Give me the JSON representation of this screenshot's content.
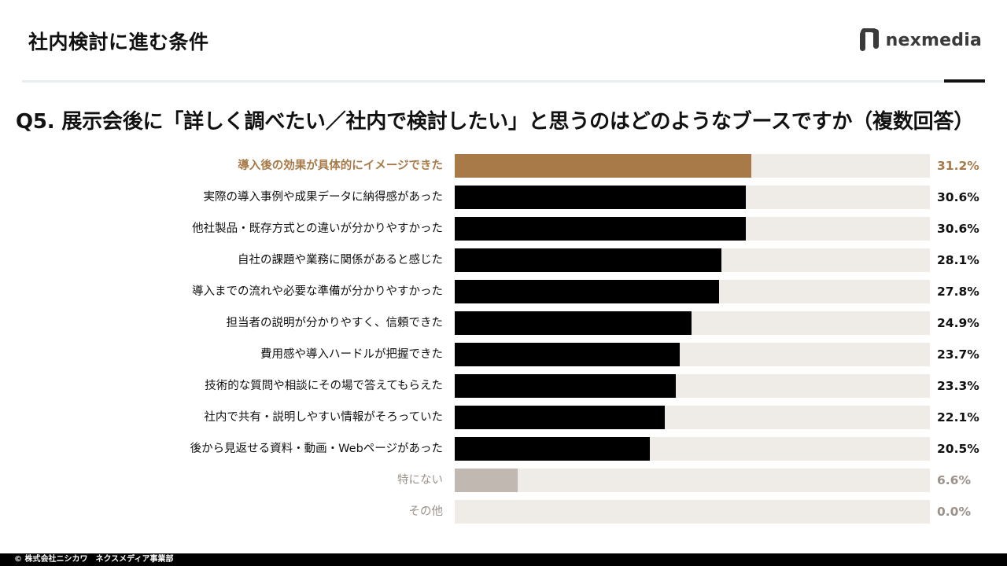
{
  "header": {
    "title": "社内検討に進む条件",
    "logo_text": "nexmedia",
    "logo_icon": "nexmedia-logo-icon"
  },
  "question": "Q5. 展示会後に「詳しく調べたい／社内で検討したい」と思うのはどのようなブースですか（複数回答）",
  "footer": "© 株式会社ニシカワ　ネクスメディア事業部",
  "colors": {
    "highlight": "#a87a48",
    "default": "#000000",
    "muted": "#c1b8b1",
    "track": "#efebe6",
    "muted_text": "#9a928b"
  },
  "chart_data": {
    "type": "bar",
    "orientation": "horizontal",
    "categories": [
      "導入後の効果が具体的にイメージできた",
      "実際の導入事例や成果データに納得感があった",
      "他社製品・既存方式との違いが分かりやすかった",
      "自社の課題や業務に関係があると感じた",
      "導入までの流れや必要な準備が分かりやすかった",
      "担当者の説明が分かりやすく、信頼できた",
      "費用感や導入ハードルが把握できた",
      "技術的な質問や相談にその場で答えてもらえた",
      "社内で共有・説明しやすい情報がそろっていた",
      "後から見返せる資料・動画・Webページがあった",
      "特にない",
      "その他"
    ],
    "values": [
      31.2,
      30.6,
      30.6,
      28.1,
      27.8,
      24.9,
      23.7,
      23.3,
      22.1,
      20.5,
      6.6,
      0.0
    ],
    "value_labels": [
      "31.2%",
      "30.6%",
      "30.6%",
      "28.1%",
      "27.8%",
      "24.9%",
      "23.7%",
      "23.3%",
      "22.1%",
      "20.5%",
      "6.6%",
      "0.0%"
    ],
    "styles": [
      "highlight",
      "default",
      "default",
      "default",
      "default",
      "default",
      "default",
      "default",
      "default",
      "default",
      "muted",
      "muted"
    ],
    "xlim": [
      0,
      50
    ],
    "unit": "%",
    "grid": false,
    "legend": "none"
  }
}
